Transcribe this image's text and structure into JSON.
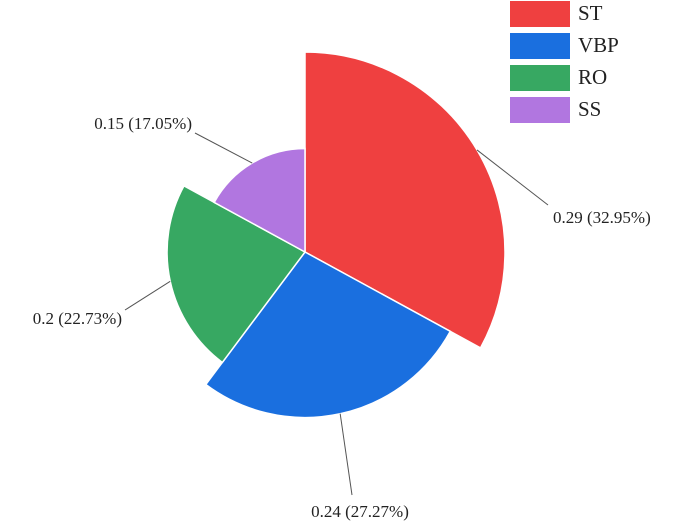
{
  "chart_data": {
    "type": "rose",
    "categories": [
      "ST",
      "VBP",
      "RO",
      "SS"
    ],
    "values": [
      0.29,
      0.24,
      0.2,
      0.15
    ],
    "value_labels": [
      "0.29 (32.95%)",
      "0.24 (27.27%)",
      "0.2 (22.73%)",
      "0.15 (17.05%)"
    ],
    "colors": [
      "#ef4040",
      "#1a6fdf",
      "#37a862",
      "#b176e0"
    ],
    "legend": "top-right"
  }
}
